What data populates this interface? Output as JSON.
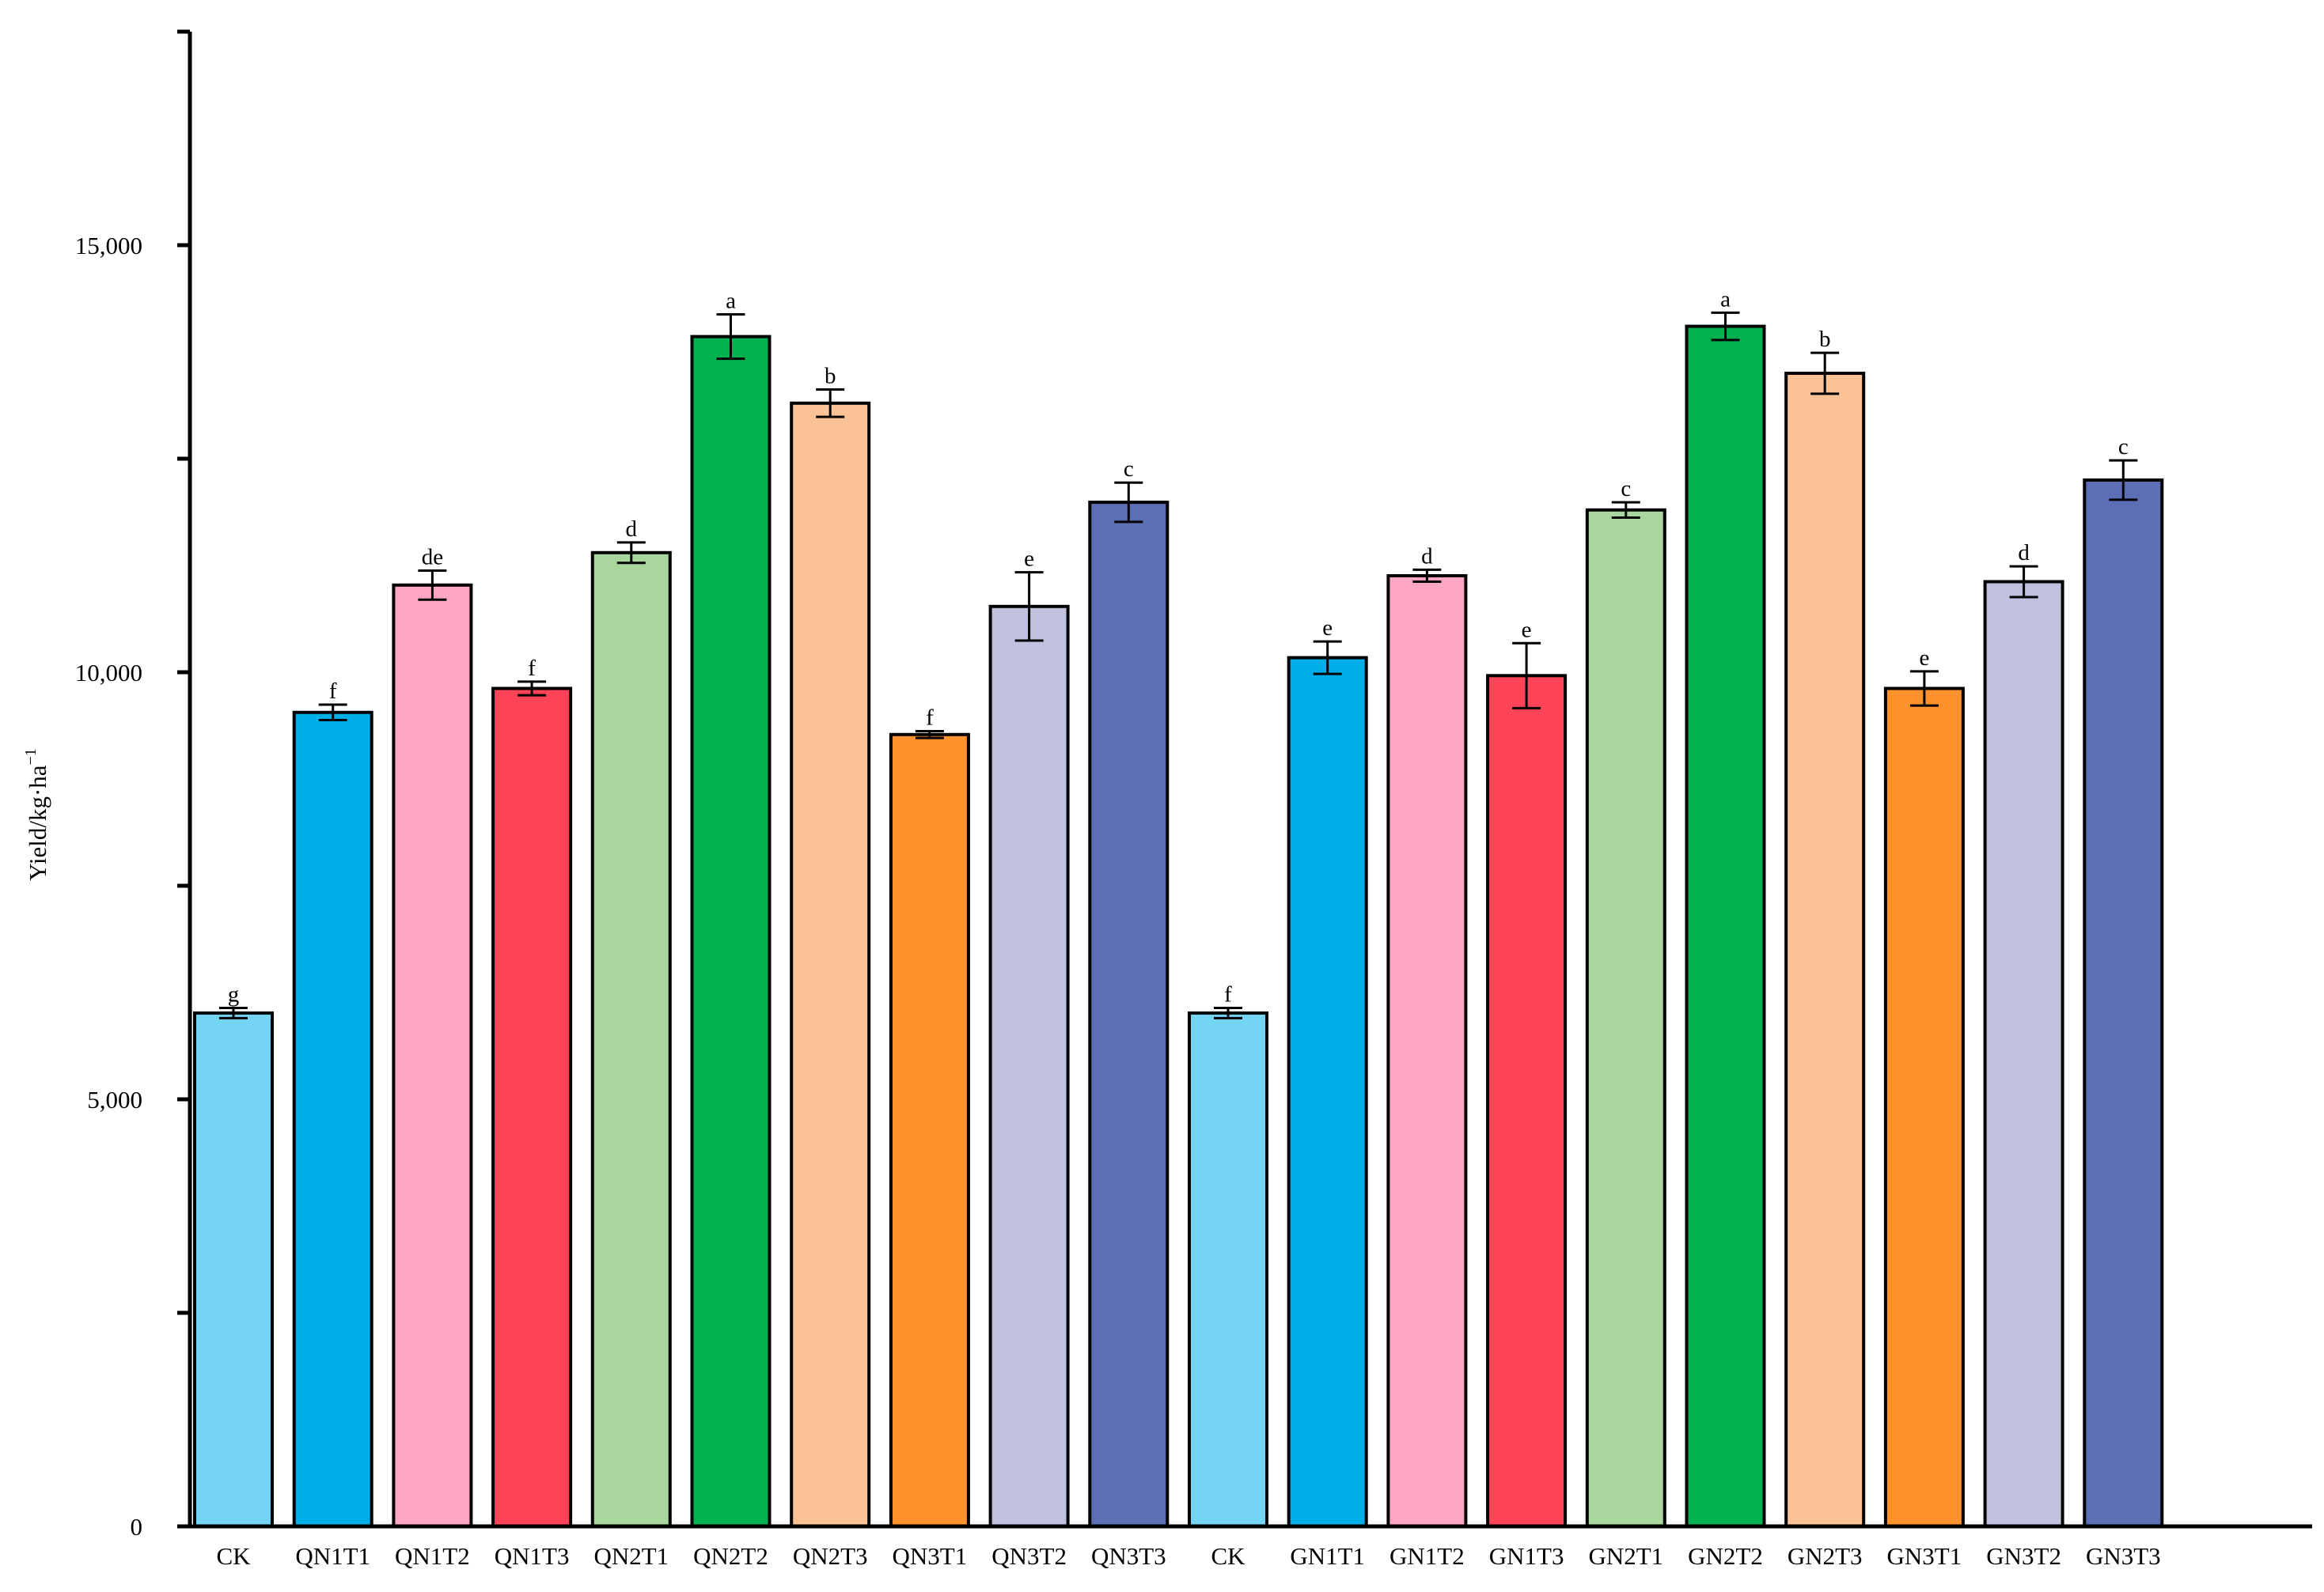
{
  "chart_data": {
    "type": "bar",
    "title": "",
    "xlabel": "",
    "ylabel": "Yield/kg·ha",
    "ylabel_superscript": "−1",
    "ylim": [
      0,
      17500
    ],
    "yticks_labeled": [
      "0",
      "5,000",
      "10,000",
      "15,000"
    ],
    "yticks_values": [
      0,
      2500,
      5000,
      7500,
      10000,
      12500,
      15000,
      17500
    ],
    "grid": false,
    "legend": "none",
    "categories": [
      "CK",
      "QN1T1",
      "QN1T2",
      "QN1T3",
      "QN2T1",
      "QN2T2",
      "QN2T3",
      "QN3T1",
      "QN3T2",
      "QN3T3",
      "CK",
      "GN1T1",
      "GN1T2",
      "GN1T3",
      "GN2T1",
      "GN2T2",
      "GN2T3",
      "GN3T1",
      "GN3T2",
      "GN3T3"
    ],
    "values": [
      6010,
      9530,
      11020,
      9810,
      11400,
      13930,
      13150,
      9270,
      10770,
      11990,
      6010,
      10170,
      11130,
      9960,
      11900,
      14050,
      13500,
      9810,
      11060,
      12250
    ],
    "errors": [
      60,
      90,
      170,
      80,
      120,
      260,
      160,
      40,
      400,
      230,
      60,
      190,
      70,
      380,
      90,
      160,
      240,
      200,
      180,
      230
    ],
    "significance": [
      "g",
      "f",
      "de",
      "f",
      "d",
      "a",
      "b",
      "f",
      "e",
      "c",
      "f",
      "e",
      "d",
      "e",
      "c",
      "a",
      "b",
      "e",
      "d",
      "c"
    ],
    "colors": [
      "#73d4f3",
      "#00aee8",
      "#ffa6c4",
      "#ff4458",
      "#a8d69d",
      "#00b14f",
      "#fbc395",
      "#ff922c",
      "#bfc1df",
      "#5c6fb5",
      "#73d4f3",
      "#00aee8",
      "#ffa6c4",
      "#ff4458",
      "#a8d69d",
      "#00b14f",
      "#fbc395",
      "#ff922c",
      "#bfc1df",
      "#5c6fb5"
    ]
  }
}
